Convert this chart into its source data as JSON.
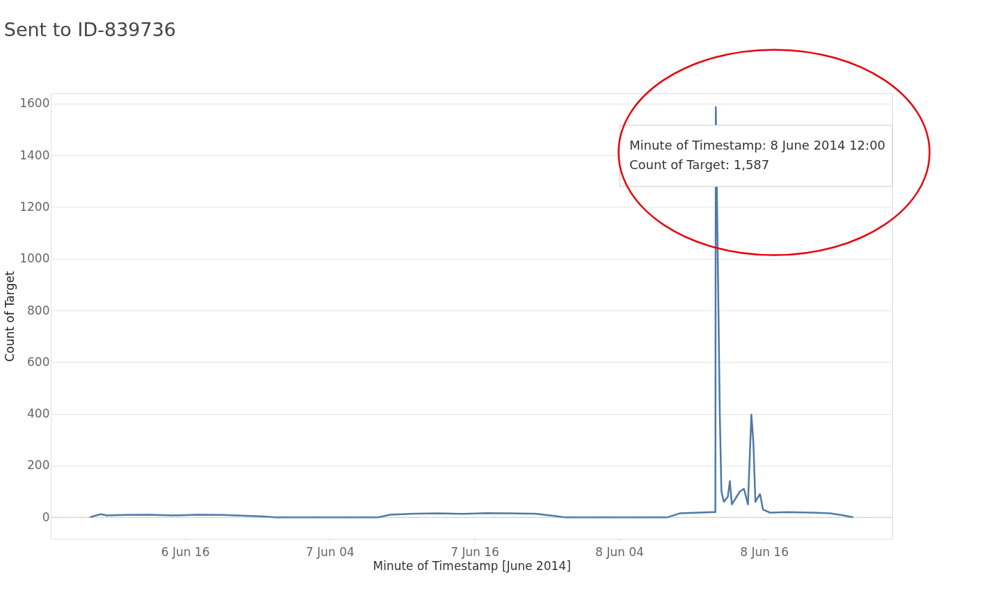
{
  "chart_data": {
    "type": "line",
    "title": "Sent to ID-839736",
    "xlabel": "Minute of Timestamp [June 2014]",
    "ylabel": "Count of Target",
    "x": [
      "2014-06-06T08:06",
      "2014-06-06T09:00",
      "2014-06-06T09:30",
      "2014-06-06T11:00",
      "2014-06-06T13:00",
      "2014-06-06T15:00",
      "2014-06-06T17:00",
      "2014-06-06T19:00",
      "2014-06-06T21:00",
      "2014-06-06T22:30",
      "2014-06-06T23:30",
      "2014-06-07T08:00",
      "2014-06-07T09:00",
      "2014-06-07T11:00",
      "2014-06-07T13:00",
      "2014-06-07T15:00",
      "2014-06-07T17:00",
      "2014-06-07T19:00",
      "2014-06-07T21:00",
      "2014-06-07T22:30",
      "2014-06-07T23:30",
      "2014-06-08T08:00",
      "2014-06-08T09:00",
      "2014-06-08T10:30",
      "2014-06-08T11:50",
      "2014-06-08T11:58",
      "2014-06-08T12:00",
      "2014-06-08T12:10",
      "2014-06-08T12:20",
      "2014-06-08T12:28",
      "2014-06-08T12:40",
      "2014-06-08T13:00",
      "2014-06-08T13:10",
      "2014-06-08T13:20",
      "2014-06-08T14:00",
      "2014-06-08T14:20",
      "2014-06-08T14:40",
      "2014-06-08T14:57",
      "2014-06-08T15:07",
      "2014-06-08T15:17",
      "2014-06-08T15:40",
      "2014-06-08T15:55",
      "2014-06-08T16:30",
      "2014-06-08T18:00",
      "2014-06-08T20:00",
      "2014-06-08T21:30",
      "2014-06-08T22:30",
      "2014-06-08T23:24"
    ],
    "series": [
      {
        "color": "#4e79a7",
        "values": [
          0,
          12,
          7,
          9,
          10,
          7,
          10,
          9,
          6,
          3,
          0,
          0,
          10,
          14,
          15,
          13,
          16,
          15,
          14,
          6,
          0,
          0,
          15,
          18,
          20,
          20,
          1587,
          1000,
          400,
          100,
          60,
          80,
          140,
          50,
          100,
          110,
          50,
          397,
          290,
          60,
          90,
          30,
          18,
          20,
          18,
          15,
          8,
          0
        ]
      }
    ],
    "xlim": [
      "2014-06-06T04:52",
      "2014-06-09T02:38"
    ],
    "xticks": [
      {
        "value": "2014-06-06T16:00",
        "label": "6 Jun 16"
      },
      {
        "value": "2014-06-07T04:00",
        "label": "7 Jun 04"
      },
      {
        "value": "2014-06-07T16:00",
        "label": "7 Jun 16"
      },
      {
        "value": "2014-06-08T04:00",
        "label": "8 Jun 04"
      },
      {
        "value": "2014-06-08T16:00",
        "label": "8 Jun 16"
      }
    ],
    "ylim": [
      -83,
      1640
    ],
    "yticks": [
      0,
      200,
      400,
      600,
      800,
      1000,
      1200,
      1400,
      1600
    ],
    "grid": "y",
    "ref_lines": [
      {
        "axis": "y",
        "value": 0,
        "color": "#999999",
        "line_style": "dotted"
      }
    ],
    "annotations": [
      "Minute of Timestamp: 8 June 2014 12:00",
      "Count of Target: 1,587"
    ]
  }
}
